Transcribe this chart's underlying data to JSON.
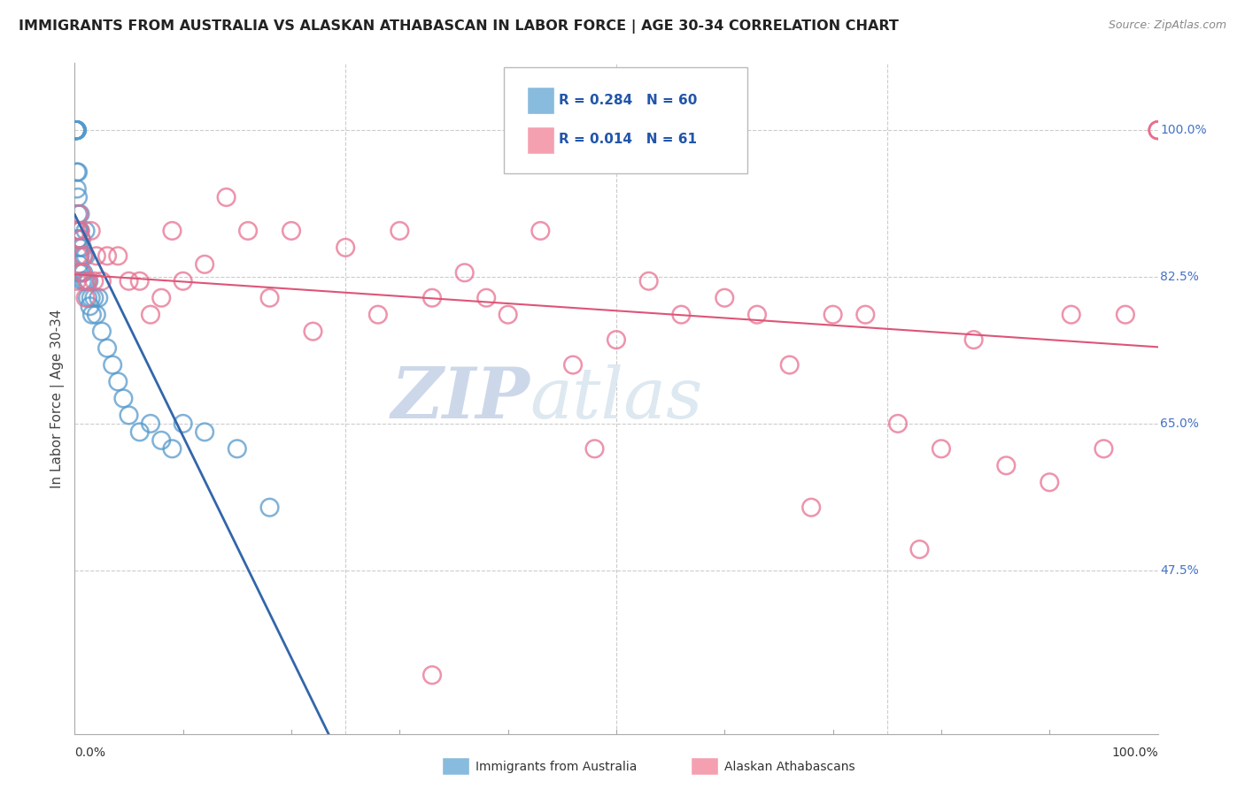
{
  "title": "IMMIGRANTS FROM AUSTRALIA VS ALASKAN ATHABASCAN IN LABOR FORCE | AGE 30-34 CORRELATION CHART",
  "source": "Source: ZipAtlas.com",
  "ylabel": "In Labor Force | Age 30-34",
  "ytick_labels": [
    "47.5%",
    "65.0%",
    "82.5%",
    "100.0%"
  ],
  "ytick_values": [
    0.475,
    0.65,
    0.825,
    1.0
  ],
  "xmin": 0.0,
  "xmax": 1.0,
  "ymin": 0.28,
  "ymax": 1.08,
  "blue_R": 0.284,
  "blue_N": 60,
  "pink_R": 0.014,
  "pink_N": 61,
  "blue_color": "#88bbdd",
  "pink_color": "#f4a0b0",
  "blue_edge_color": "#5599cc",
  "pink_edge_color": "#e87090",
  "blue_line_color": "#3366aa",
  "pink_line_color": "#dd5577",
  "legend_label_blue": "Immigrants from Australia",
  "legend_label_pink": "Alaskan Athabascans",
  "blue_scatter_x": [
    0.001,
    0.001,
    0.001,
    0.001,
    0.001,
    0.001,
    0.001,
    0.001,
    0.002,
    0.002,
    0.002,
    0.002,
    0.002,
    0.002,
    0.002,
    0.003,
    0.003,
    0.003,
    0.003,
    0.003,
    0.003,
    0.004,
    0.004,
    0.004,
    0.004,
    0.005,
    0.005,
    0.005,
    0.006,
    0.006,
    0.007,
    0.007,
    0.008,
    0.008,
    0.009,
    0.01,
    0.01,
    0.011,
    0.012,
    0.013,
    0.014,
    0.015,
    0.016,
    0.018,
    0.02,
    0.022,
    0.025,
    0.03,
    0.035,
    0.04,
    0.045,
    0.05,
    0.06,
    0.07,
    0.08,
    0.09,
    0.1,
    0.12,
    0.15,
    0.18
  ],
  "blue_scatter_y": [
    1.0,
    1.0,
    1.0,
    1.0,
    1.0,
    1.0,
    1.0,
    1.0,
    1.0,
    1.0,
    1.0,
    1.0,
    1.0,
    0.95,
    0.93,
    0.95,
    0.92,
    0.9,
    0.88,
    0.87,
    0.87,
    0.88,
    0.86,
    0.84,
    0.83,
    0.9,
    0.88,
    0.85,
    0.87,
    0.83,
    0.86,
    0.82,
    0.85,
    0.83,
    0.82,
    0.88,
    0.85,
    0.82,
    0.8,
    0.82,
    0.79,
    0.8,
    0.78,
    0.8,
    0.78,
    0.8,
    0.76,
    0.74,
    0.72,
    0.7,
    0.68,
    0.66,
    0.64,
    0.65,
    0.63,
    0.62,
    0.65,
    0.64,
    0.62,
    0.55
  ],
  "pink_scatter_x": [
    0.001,
    0.002,
    0.003,
    0.004,
    0.005,
    0.006,
    0.007,
    0.008,
    0.01,
    0.012,
    0.015,
    0.018,
    0.02,
    0.025,
    0.03,
    0.04,
    0.05,
    0.06,
    0.07,
    0.08,
    0.09,
    0.1,
    0.12,
    0.14,
    0.16,
    0.18,
    0.2,
    0.22,
    0.25,
    0.28,
    0.3,
    0.33,
    0.36,
    0.4,
    0.43,
    0.46,
    0.5,
    0.53,
    0.56,
    0.6,
    0.63,
    0.66,
    0.7,
    0.73,
    0.76,
    0.8,
    0.83,
    0.86,
    0.9,
    0.92,
    0.95,
    0.97,
    1.0,
    1.0,
    1.0,
    1.0,
    0.38,
    0.48,
    0.68,
    0.78,
    0.33
  ],
  "pink_scatter_y": [
    0.88,
    0.82,
    0.85,
    0.9,
    0.88,
    0.87,
    0.83,
    0.85,
    0.8,
    0.82,
    0.88,
    0.82,
    0.85,
    0.82,
    0.85,
    0.85,
    0.82,
    0.82,
    0.78,
    0.8,
    0.88,
    0.82,
    0.84,
    0.92,
    0.88,
    0.8,
    0.88,
    0.76,
    0.86,
    0.78,
    0.88,
    0.8,
    0.83,
    0.78,
    0.88,
    0.72,
    0.75,
    0.82,
    0.78,
    0.8,
    0.78,
    0.72,
    0.78,
    0.78,
    0.65,
    0.62,
    0.75,
    0.6,
    0.58,
    0.78,
    0.62,
    0.78,
    1.0,
    1.0,
    1.0,
    1.0,
    0.8,
    0.62,
    0.55,
    0.5,
    0.35
  ],
  "watermark_zip": "ZIP",
  "watermark_atlas": "atlas",
  "watermark_color": "#ccd8ea",
  "bg_color": "#ffffff",
  "grid_color": "#cccccc",
  "grid_style": "--",
  "pink_hline_y": 0.825
}
